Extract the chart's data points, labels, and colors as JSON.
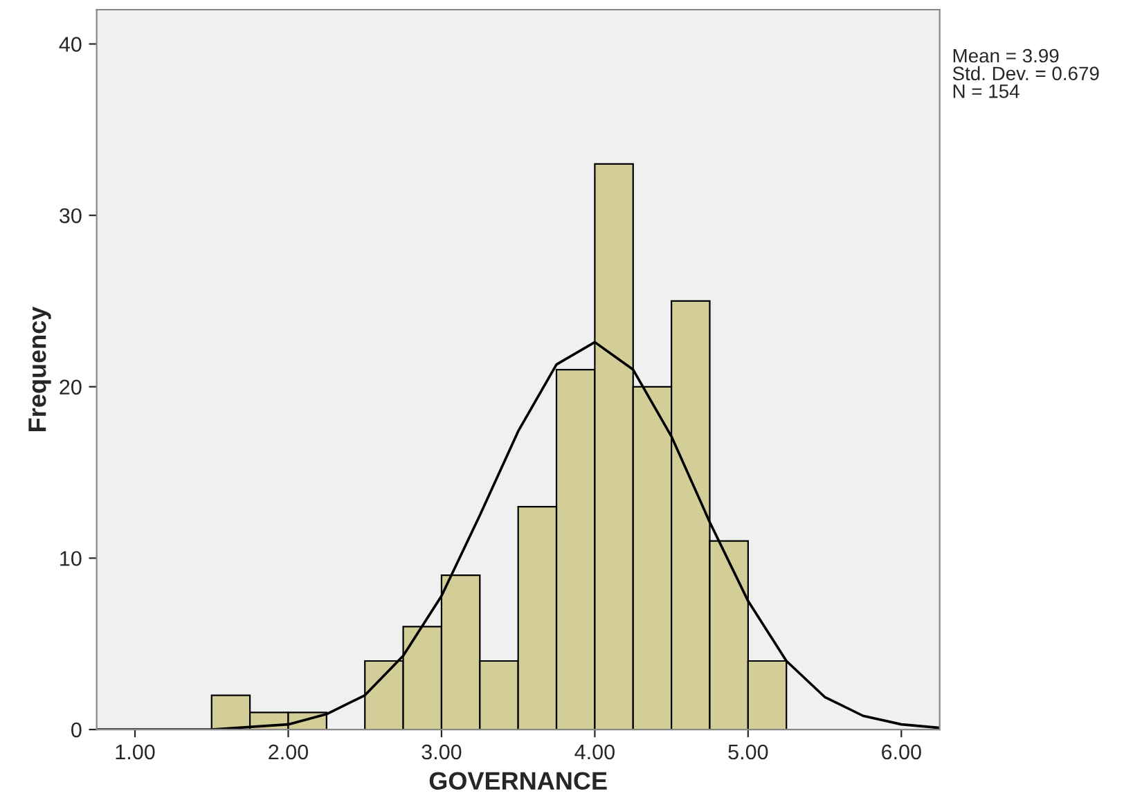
{
  "chart_data": {
    "type": "histogram",
    "xlabel": "GOVERNANCE",
    "ylabel": "Frequency",
    "bins": [
      1.5,
      1.75,
      2.0,
      2.25,
      2.5,
      2.75,
      3.0,
      3.25,
      3.5,
      3.75,
      4.0,
      4.25,
      4.5,
      4.75,
      5.0,
      5.25
    ],
    "values": [
      2,
      1,
      1,
      0,
      4,
      6,
      9,
      4,
      13,
      21,
      33,
      20,
      25,
      11,
      4
    ],
    "color": "#d3ce98",
    "series": [
      {
        "type": "line",
        "color": "#000000",
        "x": [
          0.75,
          1.5,
          2.0,
          2.25,
          2.5,
          2.75,
          3.0,
          3.25,
          3.5,
          3.75,
          4.0,
          4.25,
          4.5,
          4.75,
          5.0,
          5.25,
          5.5,
          5.75,
          6.0,
          6.25
        ],
        "values": [
          0,
          0,
          0.3,
          0.9,
          2.0,
          4.3,
          7.8,
          12.5,
          17.4,
          21.3,
          22.6,
          21.0,
          17.1,
          12.1,
          7.5,
          4.0,
          1.9,
          0.8,
          0.3,
          0.1
        ]
      }
    ],
    "xlim": [
      0.75,
      6.25
    ],
    "ylim": [
      0,
      42
    ],
    "xticks": [
      {
        "value": 1,
        "label": "1.00"
      },
      {
        "value": 2,
        "label": "2.00"
      },
      {
        "value": 3,
        "label": "3.00"
      },
      {
        "value": 4,
        "label": "4.00"
      },
      {
        "value": 5,
        "label": "5.00"
      },
      {
        "value": 6,
        "label": "6.00"
      }
    ],
    "yticks": [
      0,
      10,
      20,
      30,
      40
    ],
    "annotations": [
      "Mean = 3.99",
      "Std. Dev. = 0.679",
      "N = 154"
    ]
  }
}
